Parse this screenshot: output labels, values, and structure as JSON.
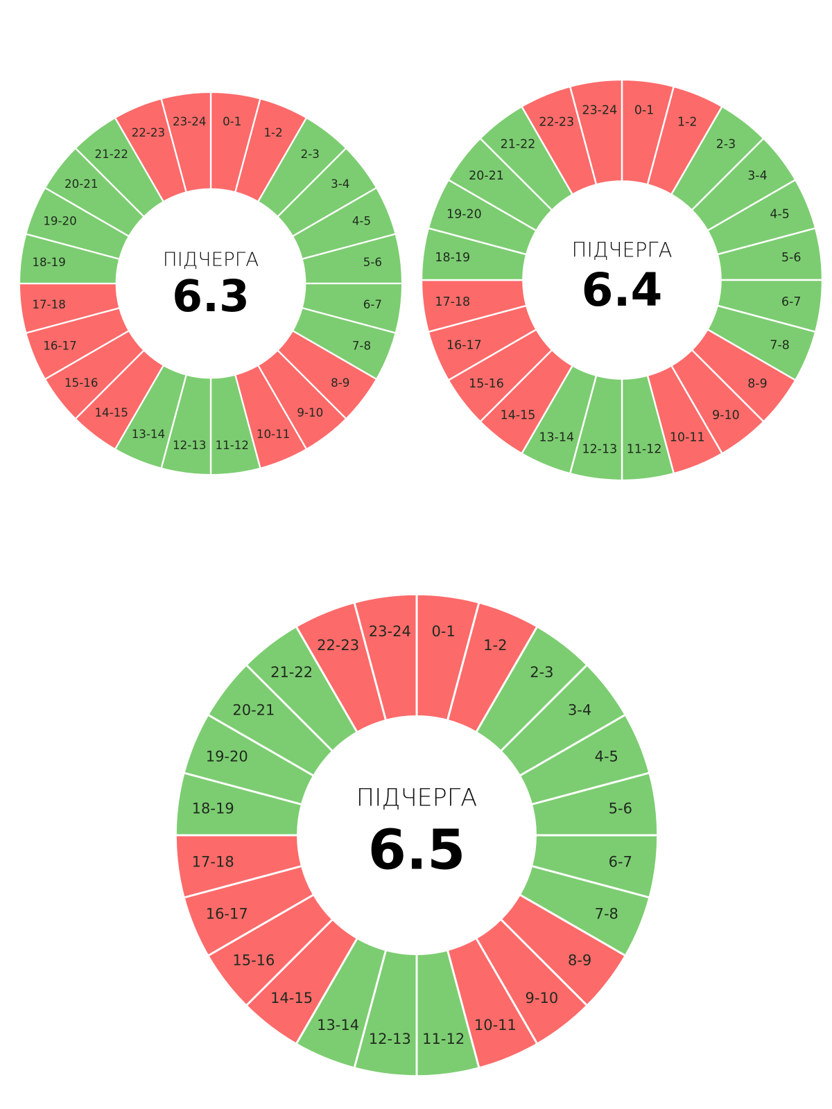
{
  "colors": {
    "on": "#7ccd71",
    "off": "#fd6a6a"
  },
  "chart_data": [
    {
      "type": "pie",
      "title": "ПІДЧЕРГА",
      "queue": "6.3",
      "categories": [
        "0-1",
        "1-2",
        "2-3",
        "3-4",
        "4-5",
        "5-6",
        "6-7",
        "7-8",
        "8-9",
        "9-10",
        "10-11",
        "11-12",
        "12-13",
        "13-14",
        "14-15",
        "15-16",
        "16-17",
        "17-18",
        "18-19",
        "19-20",
        "20-21",
        "21-22",
        "22-23",
        "23-24"
      ],
      "values": [
        1,
        1,
        1,
        1,
        1,
        1,
        1,
        1,
        1,
        1,
        1,
        1,
        1,
        1,
        1,
        1,
        1,
        1,
        1,
        1,
        1,
        1,
        1,
        1
      ],
      "status": [
        "off",
        "off",
        "on",
        "on",
        "on",
        "on",
        "on",
        "on",
        "off",
        "off",
        "off",
        "on",
        "on",
        "on",
        "off",
        "off",
        "off",
        "off",
        "on",
        "on",
        "on",
        "on",
        "off",
        "off"
      ]
    },
    {
      "type": "pie",
      "title": "ПІДЧЕРГА",
      "queue": "6.4",
      "categories": [
        "0-1",
        "1-2",
        "2-3",
        "3-4",
        "4-5",
        "5-6",
        "6-7",
        "7-8",
        "8-9",
        "9-10",
        "10-11",
        "11-12",
        "12-13",
        "13-14",
        "14-15",
        "15-16",
        "16-17",
        "17-18",
        "18-19",
        "19-20",
        "20-21",
        "21-22",
        "22-23",
        "23-24"
      ],
      "values": [
        1,
        1,
        1,
        1,
        1,
        1,
        1,
        1,
        1,
        1,
        1,
        1,
        1,
        1,
        1,
        1,
        1,
        1,
        1,
        1,
        1,
        1,
        1,
        1
      ],
      "status": [
        "off",
        "off",
        "on",
        "on",
        "on",
        "on",
        "on",
        "on",
        "off",
        "off",
        "off",
        "on",
        "on",
        "on",
        "off",
        "off",
        "off",
        "off",
        "on",
        "on",
        "on",
        "on",
        "off",
        "off"
      ]
    },
    {
      "type": "pie",
      "title": "ПІДЧЕРГА",
      "queue": "6.5",
      "categories": [
        "0-1",
        "1-2",
        "2-3",
        "3-4",
        "4-5",
        "5-6",
        "6-7",
        "7-8",
        "8-9",
        "9-10",
        "10-11",
        "11-12",
        "12-13",
        "13-14",
        "14-15",
        "15-16",
        "16-17",
        "17-18",
        "18-19",
        "19-20",
        "20-21",
        "21-22",
        "22-23",
        "23-24"
      ],
      "values": [
        1,
        1,
        1,
        1,
        1,
        1,
        1,
        1,
        1,
        1,
        1,
        1,
        1,
        1,
        1,
        1,
        1,
        1,
        1,
        1,
        1,
        1,
        1,
        1
      ],
      "status": [
        "off",
        "off",
        "on",
        "on",
        "on",
        "on",
        "on",
        "on",
        "off",
        "off",
        "off",
        "on",
        "on",
        "on",
        "off",
        "off",
        "off",
        "off",
        "on",
        "on",
        "on",
        "on",
        "off",
        "off"
      ]
    }
  ]
}
